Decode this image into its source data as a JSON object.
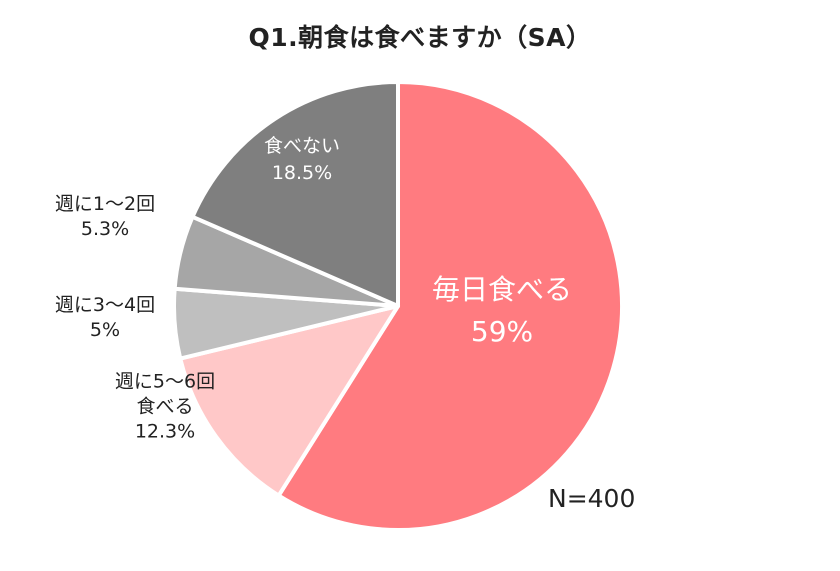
{
  "chart_data": {
    "type": "pie",
    "title": "Q1.朝食は食べますか（SA）",
    "note": "N=400",
    "slices": [
      {
        "label": [
          "毎日食べる"
        ],
        "value_label": "59%",
        "value": 59,
        "color": "#FF7B80",
        "label_color": "#FFFFFF",
        "label_inside": true
      },
      {
        "label": [
          "週に5～6回",
          "食べる"
        ],
        "value_label": "12.3%",
        "value": 12.3,
        "color": "#FFC8C8",
        "label_color": "#222222",
        "label_inside": false
      },
      {
        "label": [
          "週に3～4回"
        ],
        "value_label": "5%",
        "value": 5,
        "color": "#BFBFBF",
        "label_color": "#222222",
        "label_inside": false
      },
      {
        "label": [
          "週に1～2回"
        ],
        "value_label": "5.3%",
        "value": 5.3,
        "color": "#A6A6A6",
        "label_color": "#222222",
        "label_inside": false
      },
      {
        "label": [
          "食べない"
        ],
        "value_label": "18.5%",
        "value": 18.5,
        "color": "#7F7F7F",
        "label_color": "#FFFFFF",
        "label_inside": true
      }
    ]
  }
}
